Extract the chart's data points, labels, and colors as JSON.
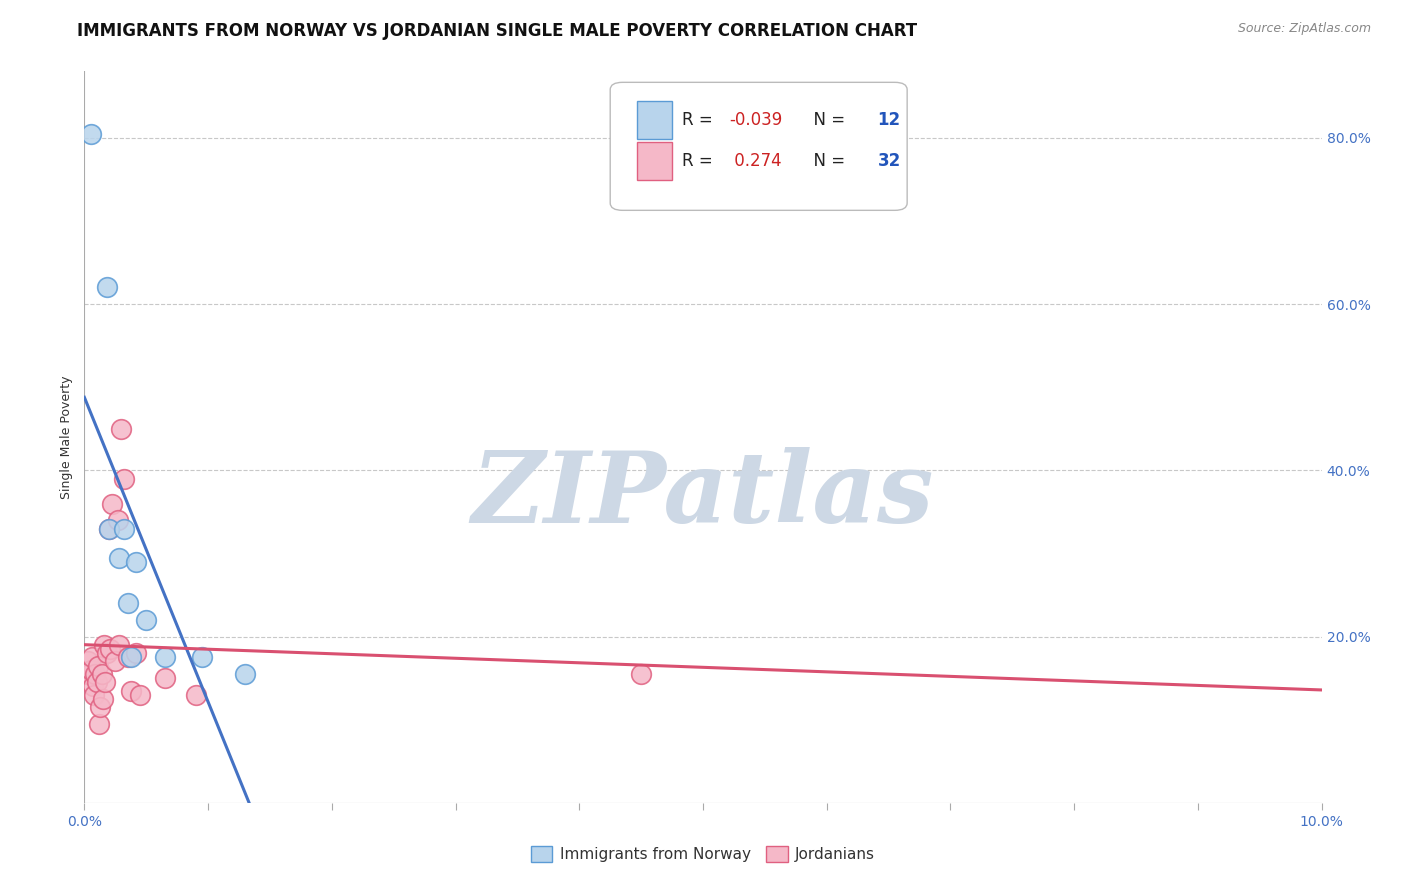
{
  "title": "IMMIGRANTS FROM NORWAY VS JORDANIAN SINGLE MALE POVERTY CORRELATION CHART",
  "source": "Source: ZipAtlas.com",
  "ylabel": "Single Male Poverty",
  "xlim": [
    0.0,
    0.1
  ],
  "ylim": [
    0.0,
    0.88
  ],
  "yticks_right": [
    0.2,
    0.4,
    0.6,
    0.8
  ],
  "norway_R": -0.039,
  "norway_N": 12,
  "jordan_R": 0.274,
  "jordan_N": 32,
  "norway_color": "#b8d4ec",
  "jordan_color": "#f5b8c8",
  "norway_edge_color": "#5b9bd5",
  "jordan_edge_color": "#e06080",
  "norway_line_color": "#4472c4",
  "jordan_line_color": "#d95070",
  "norway_x": [
    0.0005,
    0.0018,
    0.002,
    0.0028,
    0.0032,
    0.0035,
    0.0038,
    0.0042,
    0.005,
    0.0065,
    0.0095,
    0.013
  ],
  "norway_y": [
    0.805,
    0.62,
    0.33,
    0.295,
    0.33,
    0.24,
    0.175,
    0.29,
    0.22,
    0.175,
    0.175,
    0.155
  ],
  "jordan_x": [
    0.0002,
    0.0003,
    0.0004,
    0.0005,
    0.0006,
    0.0007,
    0.0008,
    0.0009,
    0.001,
    0.0011,
    0.0012,
    0.0013,
    0.0014,
    0.0015,
    0.0016,
    0.0017,
    0.0018,
    0.002,
    0.0021,
    0.0022,
    0.0025,
    0.0027,
    0.0028,
    0.003,
    0.0032,
    0.0035,
    0.0038,
    0.0042,
    0.0045,
    0.0065,
    0.009,
    0.045
  ],
  "jordan_y": [
    0.155,
    0.17,
    0.155,
    0.16,
    0.175,
    0.14,
    0.13,
    0.155,
    0.145,
    0.165,
    0.095,
    0.115,
    0.155,
    0.125,
    0.19,
    0.145,
    0.18,
    0.33,
    0.185,
    0.36,
    0.17,
    0.34,
    0.19,
    0.45,
    0.39,
    0.175,
    0.135,
    0.18,
    0.13,
    0.15,
    0.13,
    0.155
  ],
  "norway_trend_solid_end": 0.045,
  "jordan_trend_x": [
    0.0,
    0.1
  ],
  "background_color": "#ffffff",
  "grid_color": "#c8c8c8",
  "watermark_text": "ZIPatlas",
  "watermark_color": "#cdd8e5",
  "title_fontsize": 12,
  "axis_label_fontsize": 9,
  "tick_fontsize": 10,
  "legend_fontsize": 12
}
